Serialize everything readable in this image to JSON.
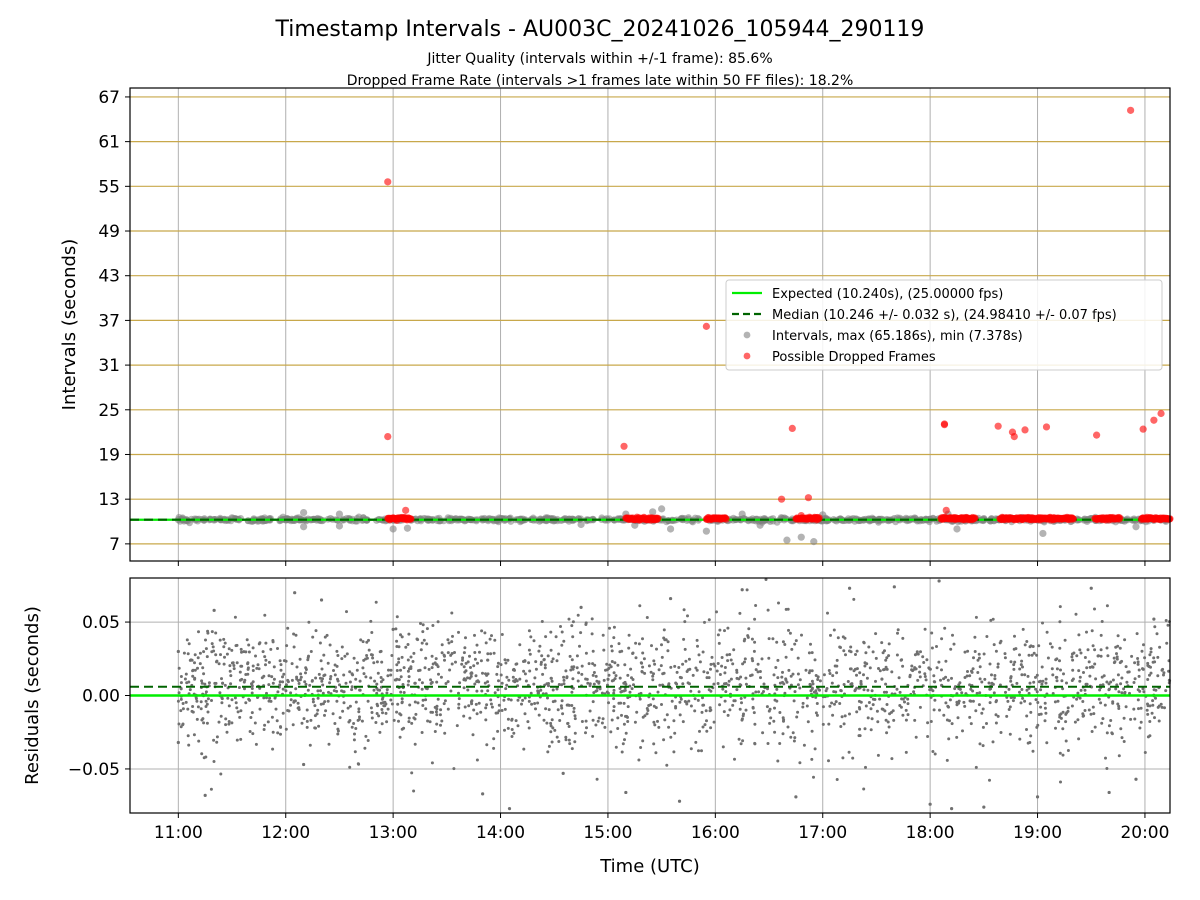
{
  "title": "Timestamp Intervals - AU003C_20241026_105944_290119",
  "subtitle_lines": [
    "Jitter Quality (intervals within +/-1 frame): 85.6%",
    "Dropped Frame Rate (intervals >1 frames late within 50 FF files): 18.2%"
  ],
  "colors": {
    "expected": "#00ee00",
    "median": "#006400",
    "intervals": "#808080",
    "dropped": "#ff0000",
    "hgrid": "#c8a84b",
    "vgrid": "#b0b0b0",
    "residual_points": "#707070"
  },
  "chart_data": [
    {
      "type": "scatter",
      "name": "intervals",
      "ylabel": "Intervals (seconds)",
      "x_axis": "time",
      "xlim": [
        "10:33",
        "20:14"
      ],
      "ylim": [
        4.7,
        68.2
      ],
      "yticks": [
        7,
        13,
        19,
        25,
        31,
        37,
        43,
        49,
        55,
        61,
        67
      ],
      "grid": "on",
      "legend_placement": "center-right",
      "legend": [
        "Expected (10.240s), (25.00000 fps)",
        "Median (10.246 +/- 0.032 s), (24.98410 +/- 0.07 fps)",
        "Intervals, max (65.186s), min (7.378s)",
        "Possible Dropped Frames"
      ],
      "series": [
        {
          "role": "expected-line",
          "y": 10.24
        },
        {
          "role": "median-line",
          "y": 10.246
        },
        {
          "role": "intervals",
          "points": [
            [
              "11:00",
              10.24
            ],
            [
              "11:10",
              10.3
            ],
            [
              "11:20",
              10.2
            ],
            [
              "11:30",
              10.5
            ],
            [
              "11:45",
              10.1
            ],
            [
              "12:00",
              10.3
            ],
            [
              "12:10",
              11.2
            ],
            [
              "12:10",
              9.3
            ],
            [
              "12:25",
              10.4
            ],
            [
              "12:30",
              11.0
            ],
            [
              "12:30",
              9.4
            ],
            [
              "12:45",
              10.2
            ],
            [
              "13:00",
              9.0
            ],
            [
              "13:08",
              9.1
            ],
            [
              "13:20",
              10.3
            ],
            [
              "13:40",
              10.1
            ],
            [
              "14:00",
              10.4
            ],
            [
              "14:20",
              10.2
            ],
            [
              "14:40",
              10.3
            ],
            [
              "14:45",
              9.6
            ],
            [
              "15:00",
              10.2
            ],
            [
              "15:10",
              11.0
            ],
            [
              "15:15",
              9.5
            ],
            [
              "15:25",
              11.3
            ],
            [
              "15:30",
              11.7
            ],
            [
              "15:35",
              9.0
            ],
            [
              "15:45",
              10.3
            ],
            [
              "15:55",
              8.7
            ],
            [
              "16:10",
              10.2
            ],
            [
              "16:15",
              11.0
            ],
            [
              "16:25",
              9.5
            ],
            [
              "16:40",
              7.5
            ],
            [
              "16:48",
              7.9
            ],
            [
              "16:55",
              7.3
            ],
            [
              "17:00",
              10.9
            ],
            [
              "17:20",
              10.2
            ],
            [
              "17:40",
              10.4
            ],
            [
              "18:00",
              10.3
            ],
            [
              "18:10",
              11.0
            ],
            [
              "18:15",
              9.0
            ],
            [
              "18:30",
              10.4
            ],
            [
              "18:45",
              10.5
            ],
            [
              "19:00",
              10.2
            ],
            [
              "19:03",
              8.4
            ],
            [
              "19:15",
              10.3
            ],
            [
              "19:30",
              10.4
            ],
            [
              "19:45",
              10.2
            ],
            [
              "19:55",
              9.3
            ],
            [
              "20:10",
              10.4
            ]
          ]
        },
        {
          "role": "dropped-frames",
          "points": [
            [
              "12:57",
              55.6
            ],
            [
              "12:57",
              21.4
            ],
            [
              "13:07",
              11.5
            ],
            [
              "15:09",
              20.1
            ],
            [
              "15:55",
              36.2
            ],
            [
              "16:37",
              13.0
            ],
            [
              "16:43",
              22.5
            ],
            [
              "16:52",
              13.2
            ],
            [
              "16:48",
              10.8
            ],
            [
              "18:08",
              23.0
            ],
            [
              "18:08",
              23.1
            ],
            [
              "18:09",
              11.5
            ],
            [
              "18:38",
              22.8
            ],
            [
              "18:46",
              22.0
            ],
            [
              "18:47",
              21.4
            ],
            [
              "18:53",
              22.3
            ],
            [
              "19:05",
              22.7
            ],
            [
              "19:33",
              21.6
            ],
            [
              "19:52",
              65.2
            ],
            [
              "19:59",
              22.4
            ],
            [
              "20:05",
              23.6
            ],
            [
              "20:09",
              24.5
            ]
          ],
          "dense_runs": [
            [
              "12:57",
              "13:10"
            ],
            [
              "15:10",
              "15:28"
            ],
            [
              "15:55",
              "16:06"
            ],
            [
              "16:45",
              "16:58"
            ],
            [
              "18:06",
              "18:25"
            ],
            [
              "18:39",
              "19:20"
            ],
            [
              "19:32",
              "19:46"
            ],
            [
              "19:58",
              "20:14"
            ]
          ]
        }
      ]
    },
    {
      "type": "scatter",
      "name": "residuals",
      "xlabel": "Time (UTC)",
      "ylabel": "Residuals (seconds)",
      "x_axis": "time",
      "xlim": [
        "10:33",
        "20:14"
      ],
      "ylim": [
        -0.08,
        0.08
      ],
      "xticks": [
        "11:00",
        "12:00",
        "13:00",
        "14:00",
        "15:00",
        "16:00",
        "17:00",
        "18:00",
        "19:00",
        "20:00"
      ],
      "yticks": [
        "−0.05",
        "0.00",
        "0.05"
      ],
      "ytick_values": [
        -0.05,
        0.0,
        0.05
      ],
      "grid": "on",
      "series": [
        {
          "role": "expected-line",
          "y": 0.0
        },
        {
          "role": "median-line",
          "y": 0.006
        },
        {
          "role": "residuals",
          "description_of_distribution": "dense cloud centered near 0.005 s with spread roughly -0.04 to +0.05 s",
          "sample": [
            [
              "11:00",
              0.03
            ],
            [
              "11:00",
              -0.032
            ],
            [
              "11:15",
              -0.068
            ],
            [
              "11:20",
              0.058
            ],
            [
              "12:05",
              0.07
            ],
            [
              "12:10",
              -0.047
            ],
            [
              "12:20",
              0.065
            ],
            [
              "13:00",
              0.045
            ],
            [
              "13:50",
              -0.067
            ],
            [
              "14:05",
              -0.077
            ],
            [
              "14:35",
              -0.053
            ],
            [
              "14:45",
              0.06
            ],
            [
              "15:10",
              -0.066
            ],
            [
              "15:35",
              0.066
            ],
            [
              "15:40",
              -0.072
            ],
            [
              "16:15",
              0.072
            ],
            [
              "16:45",
              -0.069
            ],
            [
              "17:15",
              0.073
            ],
            [
              "17:40",
              0.074
            ],
            [
              "18:00",
              -0.074
            ],
            [
              "18:05",
              0.078
            ],
            [
              "18:12",
              -0.077
            ],
            [
              "18:30",
              -0.076
            ],
            [
              "19:00",
              -0.069
            ],
            [
              "19:30",
              0.073
            ],
            [
              "19:40",
              -0.066
            ],
            [
              "19:55",
              -0.057
            ],
            [
              "20:05",
              0.052
            ]
          ]
        }
      ]
    }
  ]
}
